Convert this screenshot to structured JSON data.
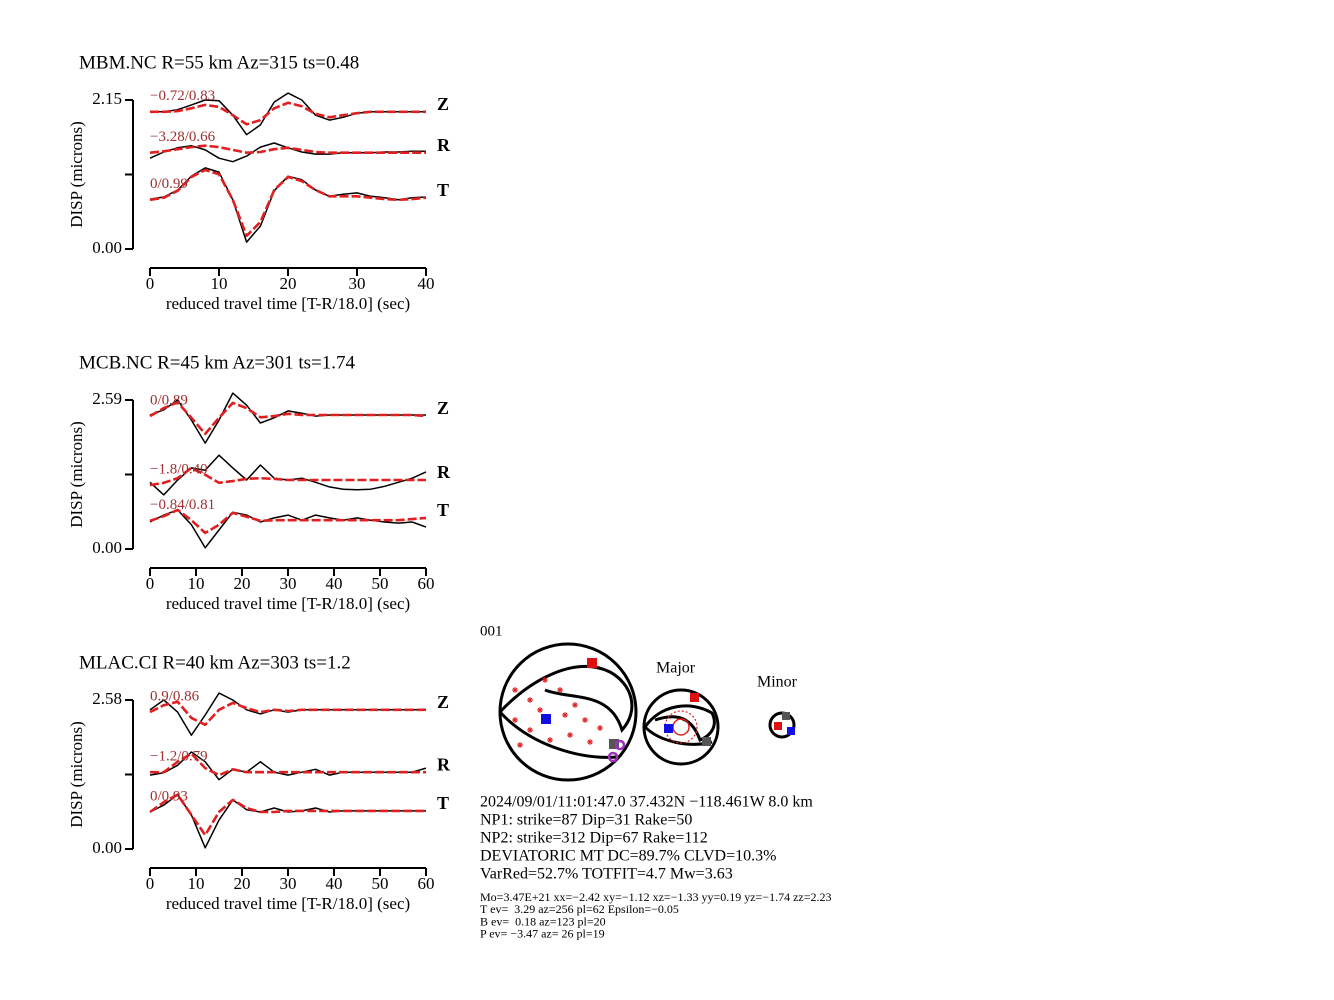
{
  "chart_data": [
    {
      "type": "line",
      "title": "MBM.NC R=55 km Az=315 ts=0.48",
      "ylabel": "DISP (microns)",
      "xlabel": "reduced travel time [T-R/18.0] (sec)",
      "x": [
        0,
        2,
        4,
        6,
        8,
        10,
        12,
        14,
        16,
        18,
        20,
        22,
        24,
        26,
        28,
        30,
        32,
        34,
        36,
        38,
        40
      ],
      "xlim": [
        0,
        40
      ],
      "xticks": [
        0,
        10,
        20,
        30,
        40
      ],
      "ylim": [
        0,
        2.15
      ],
      "yticks": [
        {
          "value": 0,
          "label": "0.00"
        },
        {
          "value": 2.15,
          "label": "2.15"
        }
      ],
      "yminor": [
        1.075
      ],
      "traces": [
        {
          "name": "Z",
          "annotation": "−0.72/0.83",
          "observed": {
            "color": "#000000",
            "values": [
              1.98,
              1.98,
              2.01,
              2.08,
              2.15,
              2.14,
              1.93,
              1.65,
              1.79,
              2.12,
              2.25,
              2.15,
              1.93,
              1.86,
              1.9,
              1.96,
              1.98,
              1.98,
              1.98,
              1.98,
              1.98
            ]
          },
          "synthetic": {
            "color": "#e02020",
            "values": [
              1.98,
              1.98,
              1.99,
              2.03,
              2.08,
              2.05,
              1.93,
              1.8,
              1.86,
              2.03,
              2.11,
              2.06,
              1.95,
              1.9,
              1.93,
              1.96,
              1.98,
              1.98,
              1.98,
              1.98,
              1.98
            ]
          }
        },
        {
          "name": "R",
          "annotation": "−3.28/0.66",
          "observed": {
            "color": "#000000",
            "values": [
              1.31,
              1.4,
              1.46,
              1.49,
              1.43,
              1.31,
              1.26,
              1.34,
              1.47,
              1.53,
              1.46,
              1.4,
              1.37,
              1.37,
              1.39,
              1.39,
              1.39,
              1.4,
              1.4,
              1.41,
              1.41
            ]
          },
          "synthetic": {
            "color": "#e02020",
            "values": [
              1.39,
              1.41,
              1.44,
              1.47,
              1.49,
              1.47,
              1.43,
              1.39,
              1.4,
              1.44,
              1.46,
              1.43,
              1.4,
              1.39,
              1.39,
              1.39,
              1.39,
              1.39,
              1.39,
              1.39,
              1.39
            ]
          }
        },
        {
          "name": "T",
          "annotation": "0/0.99",
          "observed": {
            "color": "#000000",
            "values": [
              0.72,
              0.75,
              0.85,
              1.05,
              1.17,
              1.11,
              0.71,
              0.1,
              0.33,
              0.84,
              1.05,
              1.0,
              0.85,
              0.76,
              0.79,
              0.81,
              0.76,
              0.74,
              0.71,
              0.74,
              0.75
            ]
          },
          "synthetic": {
            "color": "#e02020",
            "values": [
              0.71,
              0.74,
              0.84,
              1.04,
              1.14,
              1.08,
              0.71,
              0.19,
              0.39,
              0.85,
              1.04,
              0.98,
              0.85,
              0.76,
              0.76,
              0.76,
              0.74,
              0.72,
              0.71,
              0.72,
              0.74
            ]
          }
        }
      ]
    },
    {
      "type": "line",
      "title": "MCB.NC R=45 km Az=301 ts=1.74",
      "ylabel": "DISP (microns)",
      "xlabel": "reduced travel time [T-R/18.0] (sec)",
      "x": [
        0,
        3,
        6,
        9,
        12,
        15,
        18,
        21,
        24,
        27,
        30,
        33,
        36,
        39,
        42,
        45,
        48,
        51,
        54,
        57,
        60
      ],
      "xlim": [
        0,
        60
      ],
      "xticks": [
        0,
        10,
        20,
        30,
        40,
        50,
        60
      ],
      "ylim": [
        0,
        2.59
      ],
      "yticks": [
        {
          "value": 0,
          "label": "0.00"
        },
        2.59
      ],
      "yminor": [
        1.295
      ],
      "traces": [
        {
          "name": "Z",
          "annotation": "0/0.89",
          "observed": {
            "color": "#000000",
            "values": [
              2.33,
              2.42,
              2.59,
              2.24,
              1.84,
              2.24,
              2.71,
              2.5,
              2.19,
              2.28,
              2.4,
              2.36,
              2.31,
              2.33,
              2.33,
              2.33,
              2.33,
              2.33,
              2.33,
              2.33,
              2.33
            ]
          },
          "synthetic": {
            "color": "#e02020",
            "values": [
              2.31,
              2.45,
              2.55,
              2.28,
              2.0,
              2.28,
              2.54,
              2.45,
              2.29,
              2.31,
              2.35,
              2.33,
              2.33,
              2.33,
              2.33,
              2.33,
              2.33,
              2.33,
              2.33,
              2.33,
              2.31
            ]
          }
        },
        {
          "name": "R",
          "annotation": "−1.8/0.40",
          "observed": {
            "color": "#000000",
            "values": [
              1.16,
              0.94,
              1.2,
              1.41,
              1.37,
              1.63,
              1.41,
              1.2,
              1.46,
              1.23,
              1.2,
              1.23,
              1.16,
              1.08,
              1.04,
              1.03,
              1.04,
              1.09,
              1.16,
              1.23,
              1.34
            ]
          },
          "synthetic": {
            "color": "#e02020",
            "values": [
              1.11,
              1.15,
              1.23,
              1.41,
              1.29,
              1.15,
              1.18,
              1.22,
              1.23,
              1.22,
              1.2,
              1.2,
              1.2,
              1.2,
              1.2,
              1.2,
              1.2,
              1.2,
              1.2,
              1.2,
              1.2
            ]
          }
        },
        {
          "name": "T",
          "annotation": "−0.84/0.81",
          "observed": {
            "color": "#000000",
            "values": [
              0.47,
              0.59,
              0.68,
              0.42,
              0.02,
              0.33,
              0.64,
              0.59,
              0.47,
              0.54,
              0.59,
              0.5,
              0.59,
              0.54,
              0.5,
              0.54,
              0.5,
              0.47,
              0.45,
              0.47,
              0.38
            ]
          },
          "synthetic": {
            "color": "#e02020",
            "values": [
              0.49,
              0.57,
              0.68,
              0.5,
              0.28,
              0.42,
              0.63,
              0.56,
              0.49,
              0.5,
              0.5,
              0.5,
              0.5,
              0.5,
              0.5,
              0.5,
              0.5,
              0.5,
              0.5,
              0.52,
              0.54
            ]
          }
        }
      ]
    },
    {
      "type": "line",
      "title": "MLAC.CI R=40 km Az=303 ts=1.2",
      "ylabel": "DISP (microns)",
      "xlabel": "reduced travel time [T-R/18.0] (sec)",
      "x": [
        0,
        3,
        6,
        9,
        12,
        15,
        18,
        21,
        24,
        27,
        30,
        33,
        36,
        39,
        42,
        45,
        48,
        51,
        54,
        57,
        60
      ],
      "xlim": [
        0,
        60
      ],
      "xticks": [
        0,
        10,
        20,
        30,
        40,
        50,
        60
      ],
      "ylim": [
        0,
        2.58
      ],
      "yticks": [
        {
          "value": 0,
          "label": "0.00"
        },
        2.58
      ],
      "yminor": [
        1.29
      ],
      "traces": [
        {
          "name": "Z",
          "annotation": "0.9/0.86",
          "observed": {
            "color": "#000000",
            "values": [
              2.41,
              2.58,
              2.37,
              1.97,
              2.32,
              2.7,
              2.58,
              2.41,
              2.34,
              2.41,
              2.37,
              2.41,
              2.41,
              2.41,
              2.41,
              2.41,
              2.41,
              2.41,
              2.41,
              2.41,
              2.41
            ]
          },
          "synthetic": {
            "color": "#e02020",
            "values": [
              2.37,
              2.49,
              2.55,
              2.27,
              2.15,
              2.41,
              2.53,
              2.44,
              2.37,
              2.41,
              2.39,
              2.41,
              2.41,
              2.41,
              2.41,
              2.41,
              2.41,
              2.41,
              2.41,
              2.41,
              2.41
            ]
          }
        },
        {
          "name": "R",
          "annotation": "−1.2/0.79",
          "observed": {
            "color": "#000000",
            "values": [
              1.28,
              1.32,
              1.45,
              1.68,
              1.51,
              1.2,
              1.38,
              1.33,
              1.51,
              1.33,
              1.28,
              1.33,
              1.38,
              1.28,
              1.33,
              1.33,
              1.33,
              1.33,
              1.33,
              1.33,
              1.4
            ]
          },
          "synthetic": {
            "color": "#e02020",
            "values": [
              1.33,
              1.33,
              1.51,
              1.65,
              1.4,
              1.28,
              1.38,
              1.33,
              1.33,
              1.33,
              1.33,
              1.33,
              1.33,
              1.33,
              1.33,
              1.33,
              1.33,
              1.33,
              1.33,
              1.33,
              1.33
            ]
          }
        },
        {
          "name": "T",
          "annotation": "0/0.93",
          "observed": {
            "color": "#000000",
            "values": [
              0.64,
              0.76,
              0.94,
              0.59,
              0.02,
              0.5,
              0.85,
              0.68,
              0.64,
              0.71,
              0.64,
              0.66,
              0.71,
              0.64,
              0.66,
              0.66,
              0.66,
              0.66,
              0.66,
              0.66,
              0.66
            ]
          },
          "synthetic": {
            "color": "#e02020",
            "values": [
              0.64,
              0.81,
              0.94,
              0.59,
              0.24,
              0.64,
              0.85,
              0.71,
              0.64,
              0.64,
              0.66,
              0.66,
              0.66,
              0.66,
              0.66,
              0.66,
              0.66,
              0.66,
              0.66,
              0.66,
              0.66
            ]
          }
        }
      ]
    }
  ],
  "focal_mechanism": {
    "label": "001",
    "major_label": "Major",
    "minor_label": "Minor",
    "summary": [
      "2024/09/01/11:01:47.0 37.432N −118.461W 8.0 km",
      "NP1: strike=87 Dip=31 Rake=50",
      "NP2: strike=312 Dip=67 Rake=112",
      "DEVIATORIC MT DC=89.7% CLVD=10.3%",
      "VarRed=52.7% TOTFIT=4.7 Mw=3.63"
    ],
    "details": [
      "Mo=3.47E+21 xx=−2.42 xy=−1.12 xz=−1.33 yy=0.19 yz=−1.74 zz=2.23",
      "T ev=  3.29 az=256 pl=62 Epsilon=−0.05",
      "B ev=  0.18 az=123 pl=20",
      "P ev= −3.47 az= 26 pl=19"
    ]
  }
}
